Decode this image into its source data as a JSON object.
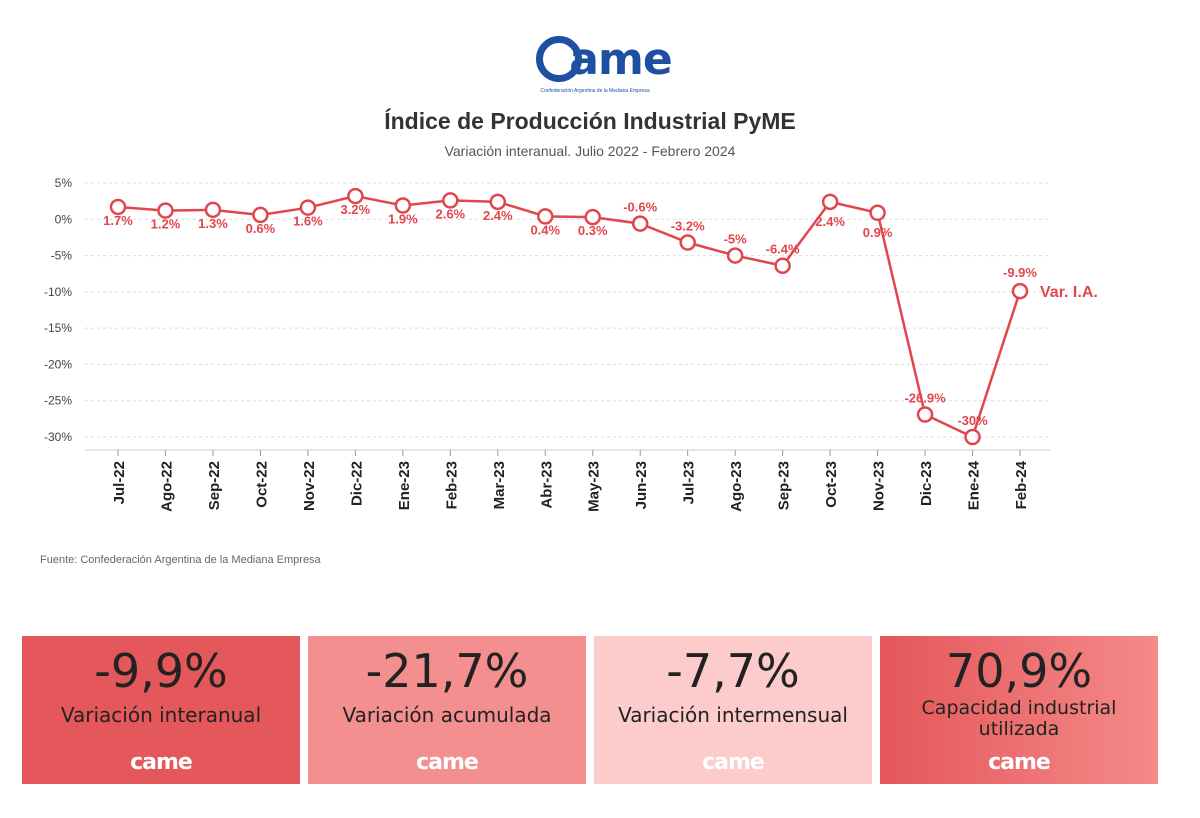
{
  "logo": {
    "mark": "ame",
    "subtitle": "Confederación Argentina de la Mediana Empresa"
  },
  "chart_data": {
    "type": "line",
    "title": "Índice de Producción Industrial PyME",
    "subtitle": "Variación interanual. Julio 2022 - Febrero 2024",
    "categories": [
      "Jul-22",
      "Ago-22",
      "Sep-22",
      "Oct-22",
      "Nov-22",
      "Dic-22",
      "Ene-23",
      "Feb-23",
      "Mar-23",
      "Abr-23",
      "May-23",
      "Jun-23",
      "Jul-23",
      "Ago-23",
      "Sep-23",
      "Oct-23",
      "Nov-23",
      "Dic-23",
      "Ene-24",
      "Feb-24"
    ],
    "series": [
      {
        "name": "Var. I.A.",
        "values": [
          1.7,
          1.2,
          1.3,
          0.6,
          1.6,
          3.2,
          1.9,
          2.6,
          2.4,
          0.4,
          0.3,
          -0.6,
          -3.2,
          -5,
          -6.4,
          2.4,
          0.9,
          -26.9,
          -30,
          -9.9
        ],
        "labels": [
          "1.7%",
          "1.2%",
          "1.3%",
          "0.6%",
          "1.6%",
          "3.2%",
          "1.9%",
          "2.6%",
          "2.4%",
          "0.4%",
          "0.3%",
          "-0.6%",
          "-3.2%",
          "-5%",
          "-6.4%",
          "2.4%",
          "0.9%",
          "-26.9%",
          "-30%",
          "-9.9%"
        ]
      }
    ],
    "yticks": [
      5,
      0,
      -5,
      -10,
      -15,
      -20,
      -25,
      -30
    ],
    "ytick_labels": [
      "5%",
      "0%",
      "-5%",
      "-10%",
      "-15%",
      "-20%",
      "-25%",
      "-30%"
    ],
    "ylim": [
      -31,
      5.3
    ],
    "grid": true,
    "legend": "end-of-line",
    "color": "#e0474c"
  },
  "source": "Fuente: Confederación Argentina de la Mediana Empresa",
  "cards": [
    {
      "value": "-9,9%",
      "label": "Variación interanual",
      "logo": "came"
    },
    {
      "value": "-21,7%",
      "label": "Variación acumulada",
      "logo": "came"
    },
    {
      "value": "-7,7%",
      "label": "Variación intermensual",
      "logo": "came"
    },
    {
      "value": "70,9%",
      "label": "Capacidad industrial utilizada",
      "logo": "came"
    }
  ]
}
